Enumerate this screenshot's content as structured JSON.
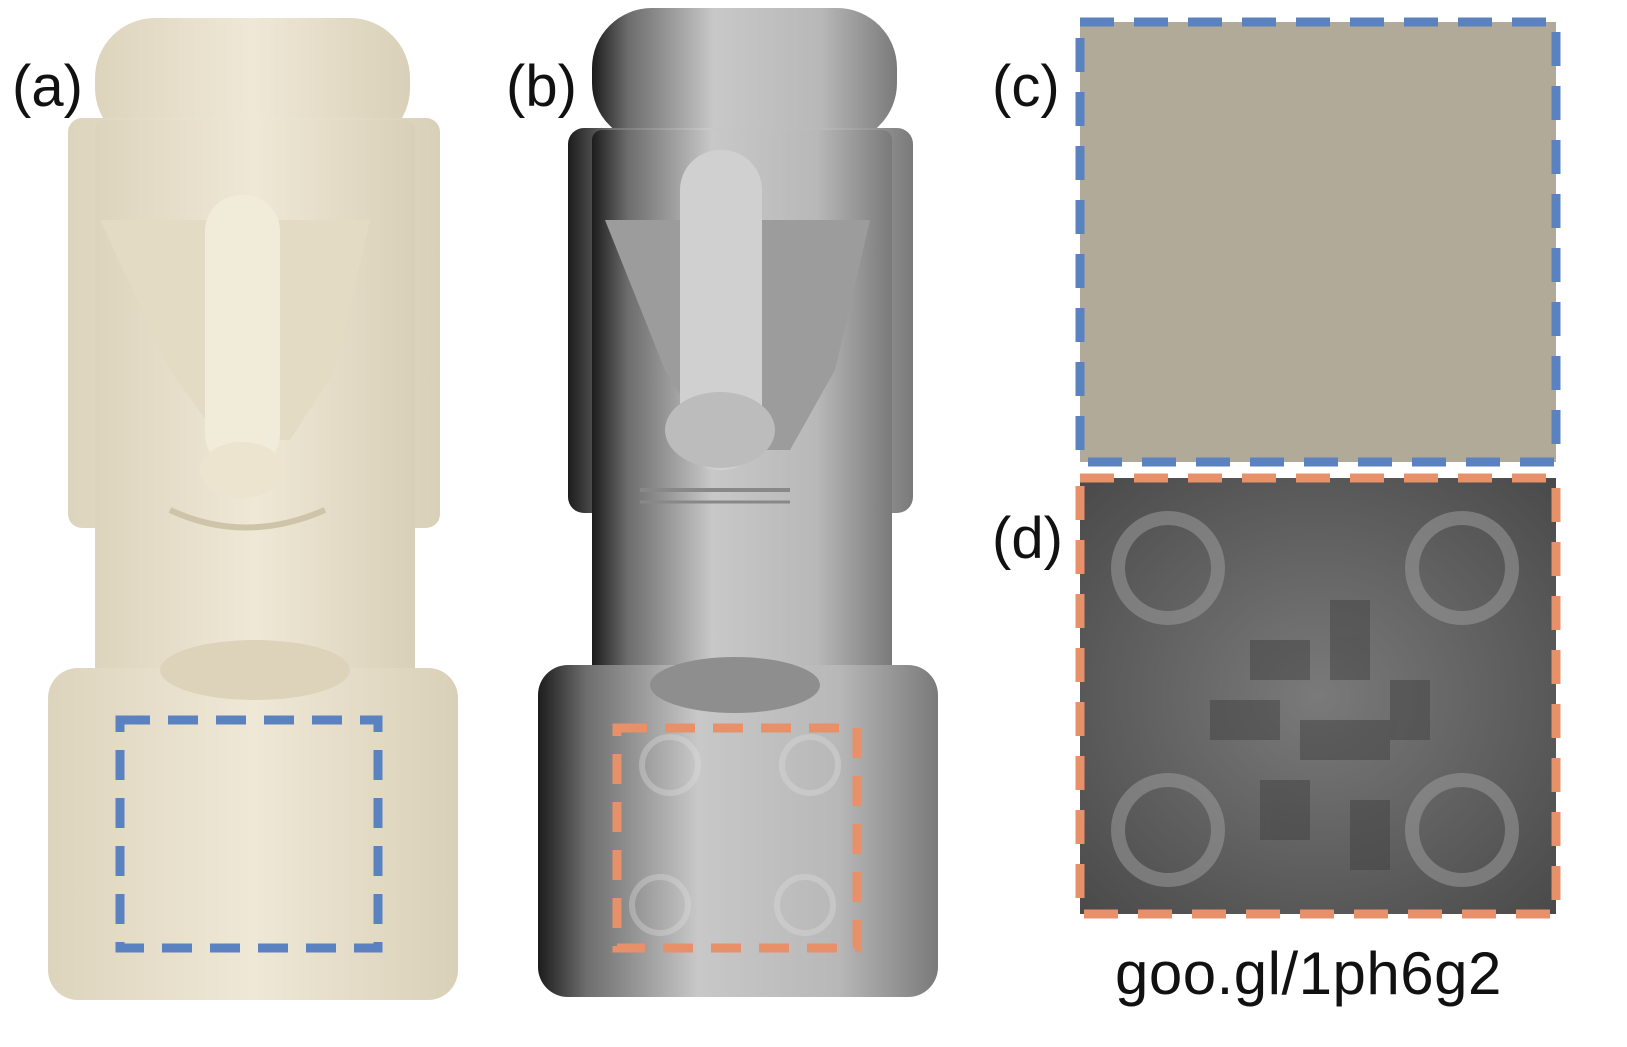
{
  "panels": {
    "a": {
      "label": "(a)"
    },
    "b": {
      "label": "(b)"
    },
    "c": {
      "label": "(c)"
    },
    "d": {
      "label": "(d)"
    }
  },
  "caption": "goo.gl/1ph6g2",
  "colors": {
    "blue_box": "#5b82c0",
    "orange_box": "#e8906a",
    "statue_photo": "#e9e1cc",
    "statue_shadow": "#cfc6ad",
    "gray_statue": "#a9a9a9",
    "closeup_c": "#b2aa98",
    "closeup_d": "#6f6f6f"
  },
  "icons": [
    "moai-statue-photo",
    "moai-statue-grayscale",
    "qr-code-closeup"
  ]
}
